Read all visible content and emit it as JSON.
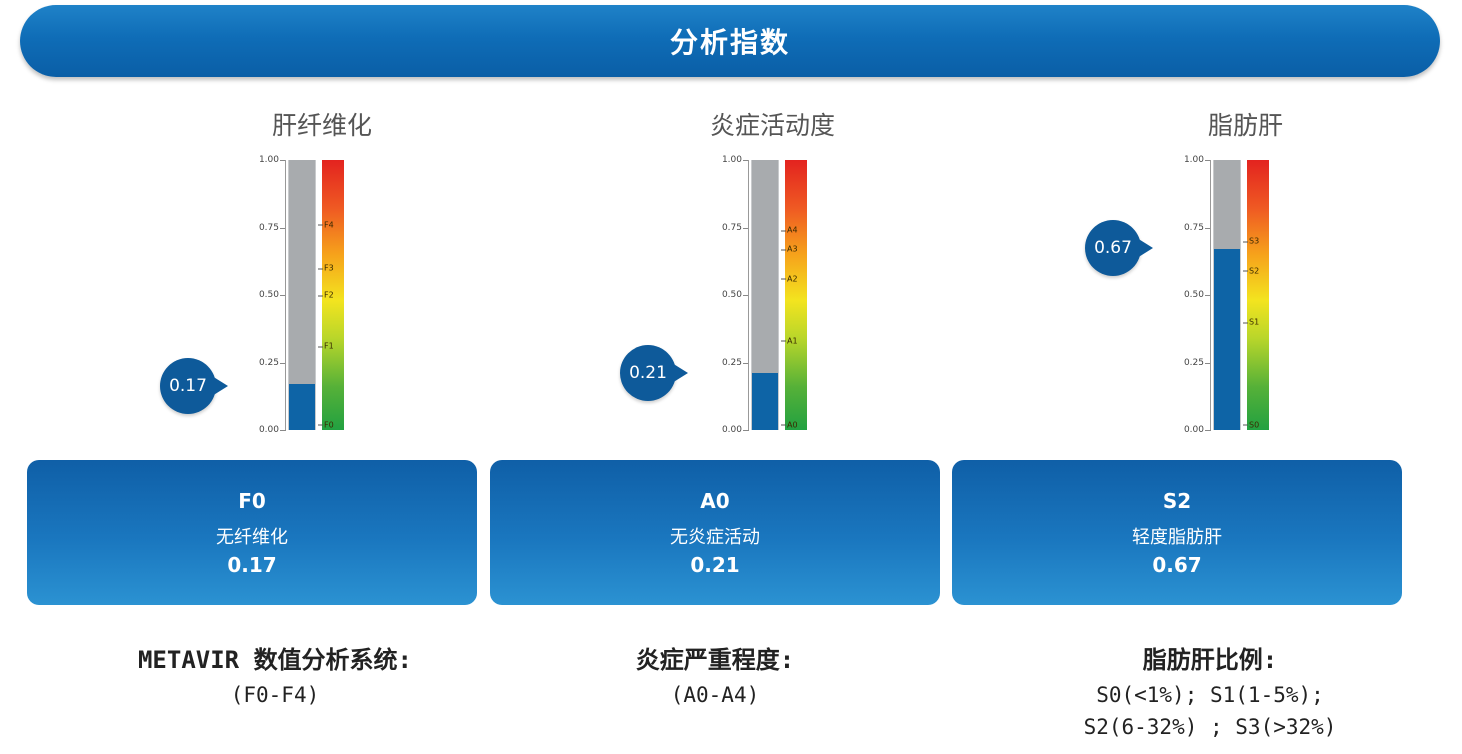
{
  "header": {
    "title": "分析指数"
  },
  "scale_ticks": [
    "1.00",
    "0.75",
    "0.50",
    "0.25",
    "0.00"
  ],
  "colors": {
    "header": "#0f6db7",
    "bar_fill": "#0e64a6",
    "card": "#1a77bf",
    "bubble": "#0e5a9a"
  },
  "panels": [
    {
      "title": "肝纤维化",
      "value_display": "0.17",
      "value": 0.17,
      "grades": [
        "F4",
        "F3",
        "F2",
        "F1",
        "F0"
      ],
      "grade_levels": [
        0.76,
        0.6,
        0.5,
        0.31,
        0.02
      ],
      "card": {
        "code": "F0",
        "label": "无纤维化",
        "value": "0.17"
      },
      "desc": {
        "title": "METAVIR 数值分析系统:",
        "lines": [
          "(F0-F4)"
        ]
      }
    },
    {
      "title": "炎症活动度",
      "value_display": "0.21",
      "value": 0.21,
      "grades": [
        "A4",
        "A3",
        "A2",
        "A1",
        "A0"
      ],
      "grade_levels": [
        0.74,
        0.67,
        0.56,
        0.33,
        0.02
      ],
      "card": {
        "code": "A0",
        "label": "无炎症活动",
        "value": "0.21"
      },
      "desc": {
        "title": "炎症严重程度:",
        "lines": [
          "(A0-A4)"
        ]
      }
    },
    {
      "title": "脂肪肝",
      "value_display": "0.67",
      "value": 0.67,
      "grades": [
        "S3",
        "S2",
        "S1",
        "S0"
      ],
      "grade_levels": [
        0.7,
        0.59,
        0.4,
        0.02
      ],
      "card": {
        "code": "S2",
        "label": "轻度脂肪肝",
        "value": "0.67"
      },
      "desc": {
        "title": "脂肪肝比例:",
        "lines": [
          "S0(<1%); S1(1-5%);",
          "S2(6-32%) ; S3(>32%)"
        ]
      }
    }
  ]
}
